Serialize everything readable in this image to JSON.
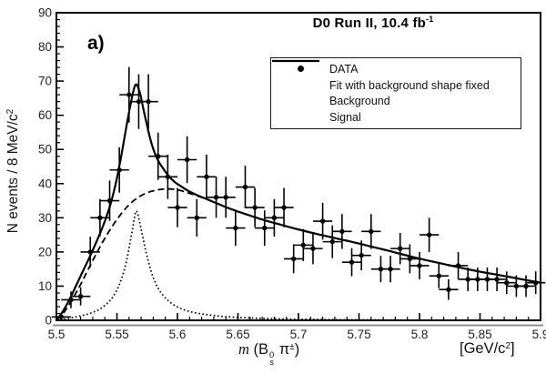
{
  "figure": {
    "panel_label": "a)",
    "title": {
      "text": "D0 Run II, 10.4 fb",
      "sup": "-1"
    },
    "legend": [
      {
        "label": "DATA",
        "style": "marker"
      },
      {
        "label": "Fit with background shape fixed",
        "style": "solid"
      },
      {
        "label": "Background",
        "style": "dashed"
      },
      {
        "label": "Signal",
        "style": "dotted"
      }
    ],
    "axes": {
      "ylabel": {
        "text": "N events / 8 MeV/c",
        "sup": "2"
      },
      "xlabel": {
        "m": "m",
        "prefix": " (B",
        "b_sup": "0",
        "b_sub": "s",
        "pi": " π",
        "pi_sup": "±",
        "suffix": ")"
      },
      "unit": {
        "text": "[GeV/c",
        "sup": "2",
        "suffix": "]"
      }
    }
  },
  "chart_data": {
    "type": "scatter",
    "title": "D0 Run II, 10.4 fb^-1",
    "xlabel": "m(Bs0 pi+-)  [GeV/c^2]",
    "ylabel": "N events / 8 MeV/c^2",
    "xlim": [
      5.5,
      5.9
    ],
    "ylim": [
      0,
      90
    ],
    "grid": false,
    "legend_position": "top-right-inside",
    "x_tick_labels": [
      "5.5",
      "5.55",
      "5.6",
      "5.65",
      "5.7",
      "5.75",
      "5.8",
      "5.85",
      "5.9"
    ],
    "x_major_step": 0.05,
    "x_minor_step": 0.01,
    "y_tick_labels": [
      "0",
      "10",
      "20",
      "30",
      "40",
      "50",
      "60",
      "70",
      "80",
      "90"
    ],
    "y_major_step": 10,
    "y_minor_step": 2,
    "bin_width_gev": 0.008,
    "data_points": {
      "name": "DATA",
      "x_start": 5.504,
      "x_step": 0.008,
      "y": [
        1,
        6,
        7,
        20,
        30,
        35,
        44,
        66,
        64,
        64,
        48,
        42,
        33,
        47,
        30,
        42,
        36,
        36,
        27,
        39,
        33,
        27,
        30,
        33,
        18,
        22,
        21,
        29,
        23,
        26,
        17,
        19,
        26,
        15,
        15,
        21,
        18,
        16,
        25,
        13,
        9,
        16,
        12,
        12,
        12,
        12,
        11,
        10,
        10,
        11
      ],
      "y_err": "sqrt(N)",
      "x_err": "half bin width"
    },
    "series": [
      {
        "name": "Fit with background shape fixed",
        "style": "solid",
        "points": [
          [
            5.5,
            0
          ],
          [
            5.506,
            3
          ],
          [
            5.512,
            7
          ],
          [
            5.52,
            13
          ],
          [
            5.53,
            20.5
          ],
          [
            5.54,
            29
          ],
          [
            5.547,
            37
          ],
          [
            5.553,
            47
          ],
          [
            5.558,
            57
          ],
          [
            5.562,
            64.5
          ],
          [
            5.5655,
            69
          ],
          [
            5.569,
            66.5
          ],
          [
            5.573,
            60
          ],
          [
            5.578,
            52.5
          ],
          [
            5.583,
            47.5
          ],
          [
            5.589,
            44
          ],
          [
            5.596,
            41
          ],
          [
            5.603,
            39.2
          ],
          [
            5.612,
            37.3
          ],
          [
            5.626,
            35.2
          ],
          [
            5.641,
            33
          ],
          [
            5.656,
            31.1
          ],
          [
            5.671,
            29.4
          ],
          [
            5.686,
            27.9
          ],
          [
            5.701,
            26.5
          ],
          [
            5.716,
            25.2
          ],
          [
            5.731,
            24
          ],
          [
            5.746,
            22.8
          ],
          [
            5.761,
            21.5
          ],
          [
            5.776,
            20.2
          ],
          [
            5.796,
            18.4
          ],
          [
            5.821,
            16.4
          ],
          [
            5.846,
            14.5
          ],
          [
            5.871,
            12.9
          ],
          [
            5.9,
            11
          ]
        ]
      },
      {
        "name": "Background",
        "style": "dashed",
        "points": [
          [
            5.5,
            0
          ],
          [
            5.506,
            2.2
          ],
          [
            5.512,
            5.5
          ],
          [
            5.52,
            10.5
          ],
          [
            5.53,
            17.5
          ],
          [
            5.54,
            24
          ],
          [
            5.55,
            29.5
          ],
          [
            5.56,
            33.8
          ],
          [
            5.57,
            36.5
          ],
          [
            5.58,
            37.9
          ],
          [
            5.59,
            38.4
          ],
          [
            5.6,
            38.2
          ],
          [
            5.612,
            36.9
          ],
          [
            5.626,
            35.2
          ],
          [
            5.641,
            33
          ],
          [
            5.656,
            31.1
          ],
          [
            5.671,
            29.4
          ],
          [
            5.686,
            27.9
          ],
          [
            5.701,
            26.5
          ],
          [
            5.716,
            25.2
          ],
          [
            5.731,
            24
          ],
          [
            5.746,
            22.8
          ],
          [
            5.761,
            21.5
          ],
          [
            5.776,
            20.2
          ],
          [
            5.796,
            18.4
          ],
          [
            5.821,
            16.4
          ],
          [
            5.846,
            14.5
          ],
          [
            5.871,
            12.9
          ],
          [
            5.9,
            11
          ]
        ]
      },
      {
        "name": "Signal",
        "style": "dotted",
        "points": [
          [
            5.5,
            0.2
          ],
          [
            5.51,
            0.6
          ],
          [
            5.52,
            1.3
          ],
          [
            5.53,
            2.3
          ],
          [
            5.538,
            3.8
          ],
          [
            5.546,
            6.5
          ],
          [
            5.552,
            10.5
          ],
          [
            5.557,
            16
          ],
          [
            5.561,
            23
          ],
          [
            5.5645,
            30
          ],
          [
            5.566,
            32
          ],
          [
            5.568,
            30
          ],
          [
            5.571,
            25
          ],
          [
            5.575,
            18.5
          ],
          [
            5.58,
            12.5
          ],
          [
            5.585,
            8.8
          ],
          [
            5.591,
            6.2
          ],
          [
            5.598,
            4.3
          ],
          [
            5.606,
            3
          ],
          [
            5.616,
            2.1
          ],
          [
            5.628,
            1.5
          ],
          [
            5.642,
            1
          ],
          [
            5.66,
            0.7
          ],
          [
            5.68,
            0.45
          ],
          [
            5.71,
            0.28
          ],
          [
            5.75,
            0.15
          ],
          [
            5.8,
            0.08
          ],
          [
            5.9,
            0.03
          ]
        ]
      }
    ]
  }
}
